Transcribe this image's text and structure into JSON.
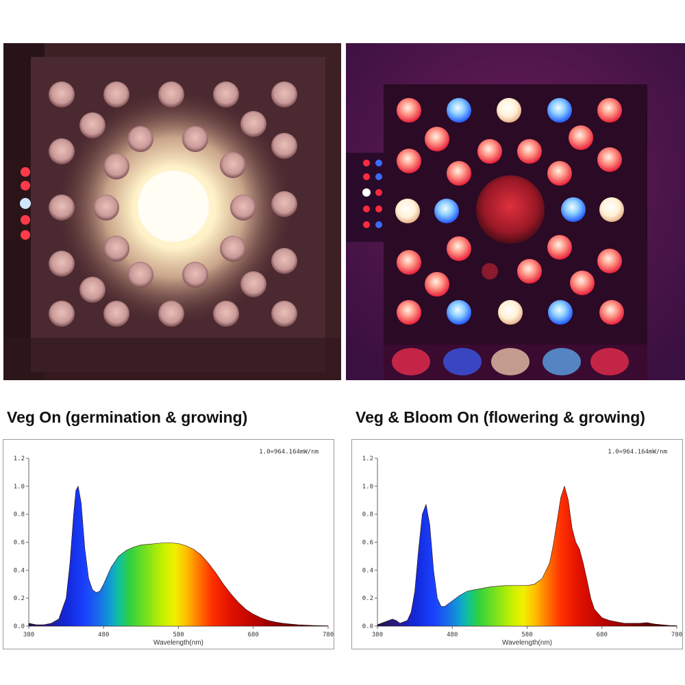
{
  "photos": [
    {
      "label_icon": "grow-light-veg-photo"
    },
    {
      "label_icon": "grow-light-veg-bloom-photo"
    }
  ],
  "captions": {
    "left": "Veg On (germination & growing)",
    "right": "Veg & Bloom On (flowering & growing)"
  },
  "chart_data": [
    {
      "type": "area",
      "title": "Veg On (germination & growing)",
      "annotation": "1.0=964.164mW/nm",
      "xlabel": "Wavelength(nm)",
      "ylabel": "",
      "xlim": [
        380,
        780
      ],
      "ylim": [
        0,
        1.2
      ],
      "x_ticks": [
        380,
        480,
        580,
        680,
        780
      ],
      "y_ticks": [
        "0.0",
        "0.2",
        "0.4",
        "0.6",
        "0.8",
        "1.0",
        "1.2"
      ],
      "x": [
        380,
        390,
        400,
        410,
        420,
        430,
        435,
        440,
        443,
        446,
        450,
        455,
        460,
        465,
        470,
        475,
        480,
        485,
        490,
        500,
        510,
        520,
        530,
        540,
        550,
        560,
        570,
        580,
        590,
        600,
        610,
        620,
        630,
        640,
        650,
        660,
        670,
        680,
        690,
        700,
        710,
        720,
        730,
        740,
        750,
        760,
        770,
        780
      ],
      "y": [
        0.02,
        0.01,
        0.01,
        0.02,
        0.05,
        0.2,
        0.45,
        0.8,
        0.97,
        1.0,
        0.88,
        0.55,
        0.34,
        0.26,
        0.24,
        0.25,
        0.3,
        0.36,
        0.42,
        0.5,
        0.54,
        0.565,
        0.58,
        0.585,
        0.59,
        0.595,
        0.595,
        0.59,
        0.575,
        0.55,
        0.51,
        0.45,
        0.38,
        0.3,
        0.23,
        0.17,
        0.12,
        0.085,
        0.06,
        0.04,
        0.028,
        0.02,
        0.014,
        0.01,
        0.007,
        0.005,
        0.003,
        0.002
      ]
    },
    {
      "type": "area",
      "title": "Veg & Bloom On (flowering & growing)",
      "annotation": "1.0=964.164mW/nm",
      "xlabel": "Wavelength(nm)",
      "ylabel": "",
      "xlim": [
        380,
        780
      ],
      "ylim": [
        0,
        1.2
      ],
      "x_ticks": [
        380,
        480,
        580,
        680,
        780
      ],
      "y_ticks": [
        "0.0",
        "0.2",
        "0.4",
        "0.6",
        "0.8",
        "1.0",
        "1.2"
      ],
      "x": [
        380,
        390,
        400,
        405,
        410,
        420,
        425,
        430,
        435,
        440,
        445,
        450,
        455,
        460,
        465,
        470,
        480,
        490,
        500,
        510,
        520,
        530,
        540,
        550,
        560,
        570,
        580,
        590,
        600,
        610,
        615,
        620,
        625,
        630,
        635,
        640,
        645,
        650,
        655,
        660,
        665,
        670,
        680,
        690,
        700,
        710,
        720,
        730,
        740,
        750,
        760,
        770,
        780
      ],
      "y": [
        0.01,
        0.03,
        0.05,
        0.04,
        0.02,
        0.04,
        0.1,
        0.25,
        0.55,
        0.8,
        0.87,
        0.72,
        0.4,
        0.2,
        0.14,
        0.14,
        0.18,
        0.22,
        0.25,
        0.26,
        0.27,
        0.28,
        0.285,
        0.29,
        0.29,
        0.29,
        0.29,
        0.3,
        0.34,
        0.45,
        0.58,
        0.75,
        0.92,
        1.0,
        0.9,
        0.7,
        0.6,
        0.55,
        0.45,
        0.33,
        0.2,
        0.12,
        0.06,
        0.04,
        0.03,
        0.02,
        0.02,
        0.02,
        0.025,
        0.015,
        0.01,
        0.005,
        0.003
      ]
    }
  ]
}
